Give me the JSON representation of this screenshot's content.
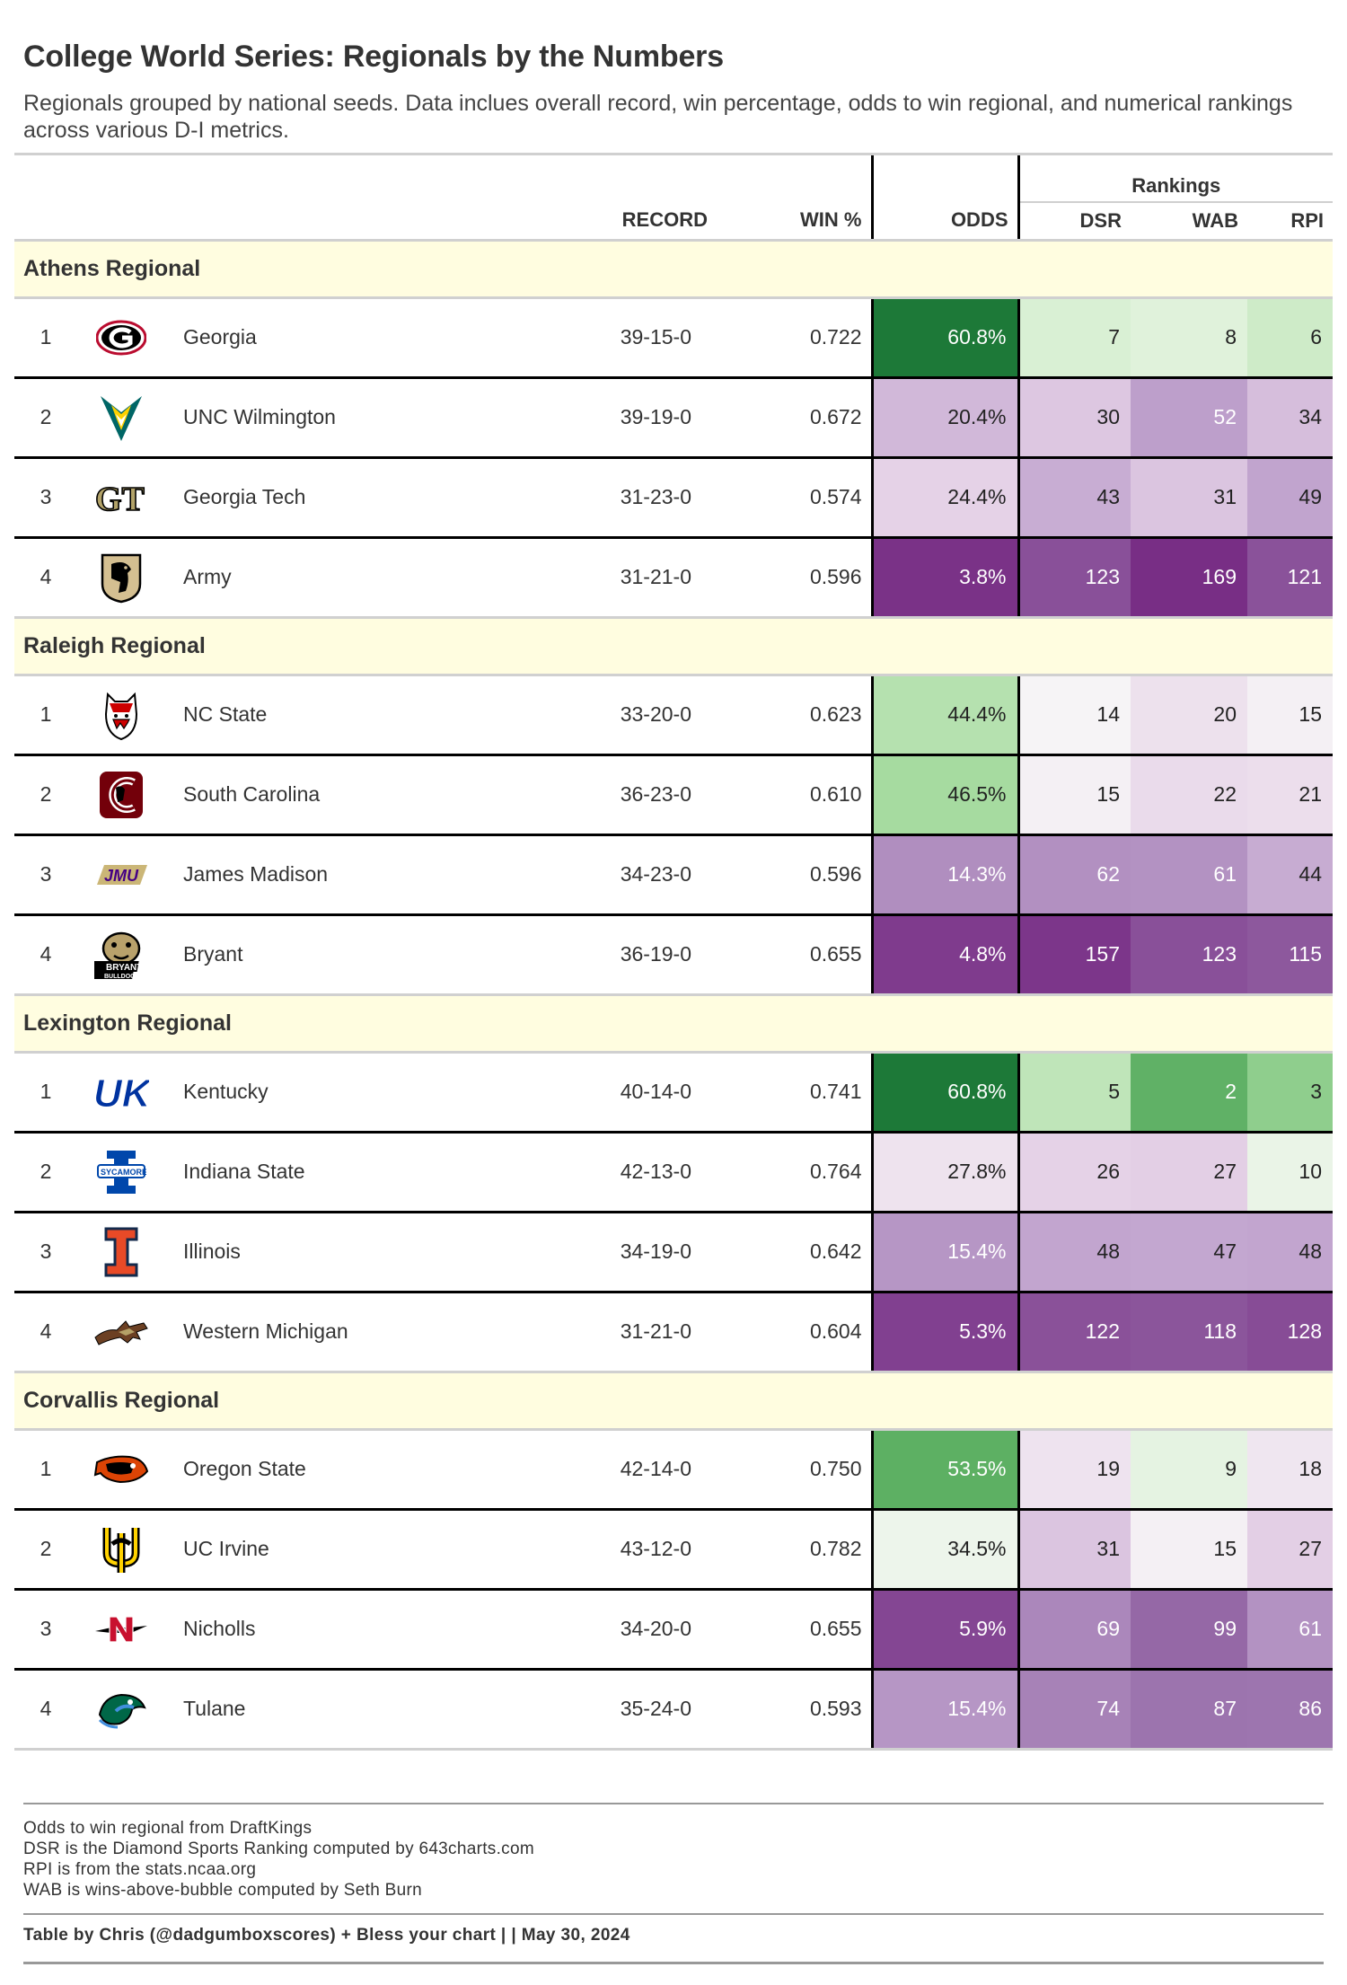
{
  "title": "College World Series: Regionals by the Numbers",
  "subtitle": "Regionals grouped by national seeds. Data inclues overall record, win percentage, odds to win regional, and numerical rankings across various D-I metrics.",
  "chart_data": {
    "type": "table",
    "spanner": "Rankings",
    "columns": [
      "RECORD",
      "WIN %",
      "ODDS",
      "DSR",
      "WAB",
      "RPI"
    ],
    "groups": [
      {
        "name": "Athens Regional",
        "teams": [
          {
            "seed": "1",
            "team": "Georgia",
            "record": "39-15-0",
            "win_pct": "0.722",
            "odds": "60.8%",
            "odds_value": 60.8,
            "dsr": 7,
            "wab": 8,
            "rpi": 6,
            "logo": "georgia-logo"
          },
          {
            "seed": "2",
            "team": "UNC Wilmington",
            "record": "39-19-0",
            "win_pct": "0.672",
            "odds": "20.4%",
            "odds_value": 20.4,
            "dsr": 30,
            "wab": 52,
            "rpi": 34,
            "logo": "unc-wilmington-logo"
          },
          {
            "seed": "3",
            "team": "Georgia Tech",
            "record": "31-23-0",
            "win_pct": "0.574",
            "odds": "24.4%",
            "odds_value": 24.4,
            "dsr": 43,
            "wab": 31,
            "rpi": 49,
            "logo": "georgia-tech-logo"
          },
          {
            "seed": "4",
            "team": "Army",
            "record": "31-21-0",
            "win_pct": "0.596",
            "odds": "3.8%",
            "odds_value": 3.8,
            "dsr": 123,
            "wab": 169,
            "rpi": 121,
            "logo": "army-logo"
          }
        ]
      },
      {
        "name": "Raleigh Regional",
        "teams": [
          {
            "seed": "1",
            "team": "NC State",
            "record": "33-20-0",
            "win_pct": "0.623",
            "odds": "44.4%",
            "odds_value": 44.4,
            "dsr": 14,
            "wab": 20,
            "rpi": 15,
            "logo": "nc-state-logo"
          },
          {
            "seed": "2",
            "team": "South Carolina",
            "record": "36-23-0",
            "win_pct": "0.610",
            "odds": "46.5%",
            "odds_value": 46.5,
            "dsr": 15,
            "wab": 22,
            "rpi": 21,
            "logo": "south-carolina-logo"
          },
          {
            "seed": "3",
            "team": "James Madison",
            "record": "34-23-0",
            "win_pct": "0.596",
            "odds": "14.3%",
            "odds_value": 14.3,
            "dsr": 62,
            "wab": 61,
            "rpi": 44,
            "logo": "james-madison-logo"
          },
          {
            "seed": "4",
            "team": "Bryant",
            "record": "36-19-0",
            "win_pct": "0.655",
            "odds": "4.8%",
            "odds_value": 4.8,
            "dsr": 157,
            "wab": 123,
            "rpi": 115,
            "logo": "bryant-logo"
          }
        ]
      },
      {
        "name": "Lexington Regional",
        "teams": [
          {
            "seed": "1",
            "team": "Kentucky",
            "record": "40-14-0",
            "win_pct": "0.741",
            "odds": "60.8%",
            "odds_value": 60.8,
            "dsr": 5,
            "wab": 2,
            "rpi": 3,
            "logo": "kentucky-logo"
          },
          {
            "seed": "2",
            "team": "Indiana State",
            "record": "42-13-0",
            "win_pct": "0.764",
            "odds": "27.8%",
            "odds_value": 27.8,
            "dsr": 26,
            "wab": 27,
            "rpi": 10,
            "logo": "indiana-state-logo"
          },
          {
            "seed": "3",
            "team": "Illinois",
            "record": "34-19-0",
            "win_pct": "0.642",
            "odds": "15.4%",
            "odds_value": 15.4,
            "dsr": 48,
            "wab": 47,
            "rpi": 48,
            "logo": "illinois-logo"
          },
          {
            "seed": "4",
            "team": "Western Michigan",
            "record": "31-21-0",
            "win_pct": "0.604",
            "odds": "5.3%",
            "odds_value": 5.3,
            "dsr": 122,
            "wab": 118,
            "rpi": 128,
            "logo": "western-michigan-logo"
          }
        ]
      },
      {
        "name": "Corvallis Regional",
        "teams": [
          {
            "seed": "1",
            "team": "Oregon State",
            "record": "42-14-0",
            "win_pct": "0.750",
            "odds": "53.5%",
            "odds_value": 53.5,
            "dsr": 19,
            "wab": 9,
            "rpi": 18,
            "logo": "oregon-state-logo"
          },
          {
            "seed": "2",
            "team": "UC Irvine",
            "record": "43-12-0",
            "win_pct": "0.782",
            "odds": "34.5%",
            "odds_value": 34.5,
            "dsr": 31,
            "wab": 15,
            "rpi": 27,
            "logo": "uc-irvine-logo"
          },
          {
            "seed": "3",
            "team": "Nicholls",
            "record": "34-20-0",
            "win_pct": "0.655",
            "odds": "5.9%",
            "odds_value": 5.9,
            "dsr": 69,
            "wab": 99,
            "rpi": 61,
            "logo": "nicholls-logo"
          },
          {
            "seed": "4",
            "team": "Tulane",
            "record": "35-24-0",
            "win_pct": "0.593",
            "odds": "15.4%",
            "odds_value": 15.4,
            "dsr": 74,
            "wab": 87,
            "rpi": 86,
            "logo": "tulane-logo"
          }
        ]
      }
    ]
  },
  "notes": [
    "Odds to win regional from DraftKings",
    "DSR is the Diamond Sports Ranking computed by 643charts.com",
    "RPI is from the stats.ncaa.org",
    "WAB is wins-above-bubble computed by Seth Burn"
  ],
  "credit": "Table by Chris (@dadgumboxscores) + Bless your chart | | May 30, 2024",
  "colors": {
    "group_bg": "#fffde0",
    "green_dark": "#1b7837",
    "green_light": "#d9f0d3",
    "neutral": "#f7f7f7",
    "purple_light": "#e7d4e8",
    "purple_dark": "#762a83"
  }
}
